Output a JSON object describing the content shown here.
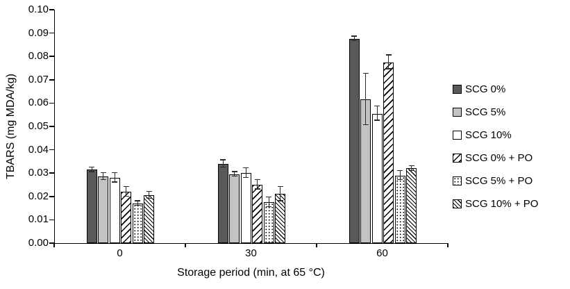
{
  "chart_data": {
    "type": "bar",
    "grouped": true,
    "title": "",
    "xlabel": "Storage period (min, at 65 °C)",
    "ylabel": "TBARS (mg MDA/kg)",
    "ylim": [
      0,
      0.1
    ],
    "ytick_step": 0.01,
    "yticks": [
      "0.00",
      "0.01",
      "0.02",
      "0.03",
      "0.04",
      "0.05",
      "0.06",
      "0.07",
      "0.08",
      "0.09",
      "0.10"
    ],
    "categories": [
      "0",
      "30",
      "60"
    ],
    "grid": false,
    "error_bars": true,
    "legend_position": "right",
    "series": [
      {
        "name": "SCG 0%",
        "pattern": "solid-dark",
        "color": "#595959",
        "values": [
          0.0315,
          0.034,
          0.0875
        ],
        "errors": [
          0.001,
          0.0015,
          0.001
        ]
      },
      {
        "name": "SCG 5%",
        "pattern": "solid-light",
        "color": "#c3c3c3",
        "values": [
          0.0285,
          0.0295,
          0.0615
        ],
        "errors": [
          0.0015,
          0.001,
          0.011
        ]
      },
      {
        "name": "SCG 10%",
        "pattern": "white",
        "color": "#ffffff",
        "values": [
          0.028,
          0.03,
          0.0555
        ],
        "errors": [
          0.002,
          0.002,
          0.003
        ]
      },
      {
        "name": "SCG 0% + PO",
        "pattern": "hatch",
        "color": "#ffffff",
        "values": [
          0.022,
          0.025,
          0.0775
        ],
        "errors": [
          0.002,
          0.002,
          0.003
        ]
      },
      {
        "name": "SCG 5% + PO",
        "pattern": "dots",
        "color": "#ffffff",
        "values": [
          0.017,
          0.0175,
          0.029
        ],
        "errors": [
          0.001,
          0.002,
          0.002
        ]
      },
      {
        "name": "SCG 10% + PO",
        "pattern": "hatch-fine",
        "color": "#ffffff",
        "values": [
          0.0205,
          0.021,
          0.032
        ],
        "errors": [
          0.0015,
          0.003,
          0.001
        ]
      }
    ]
  }
}
